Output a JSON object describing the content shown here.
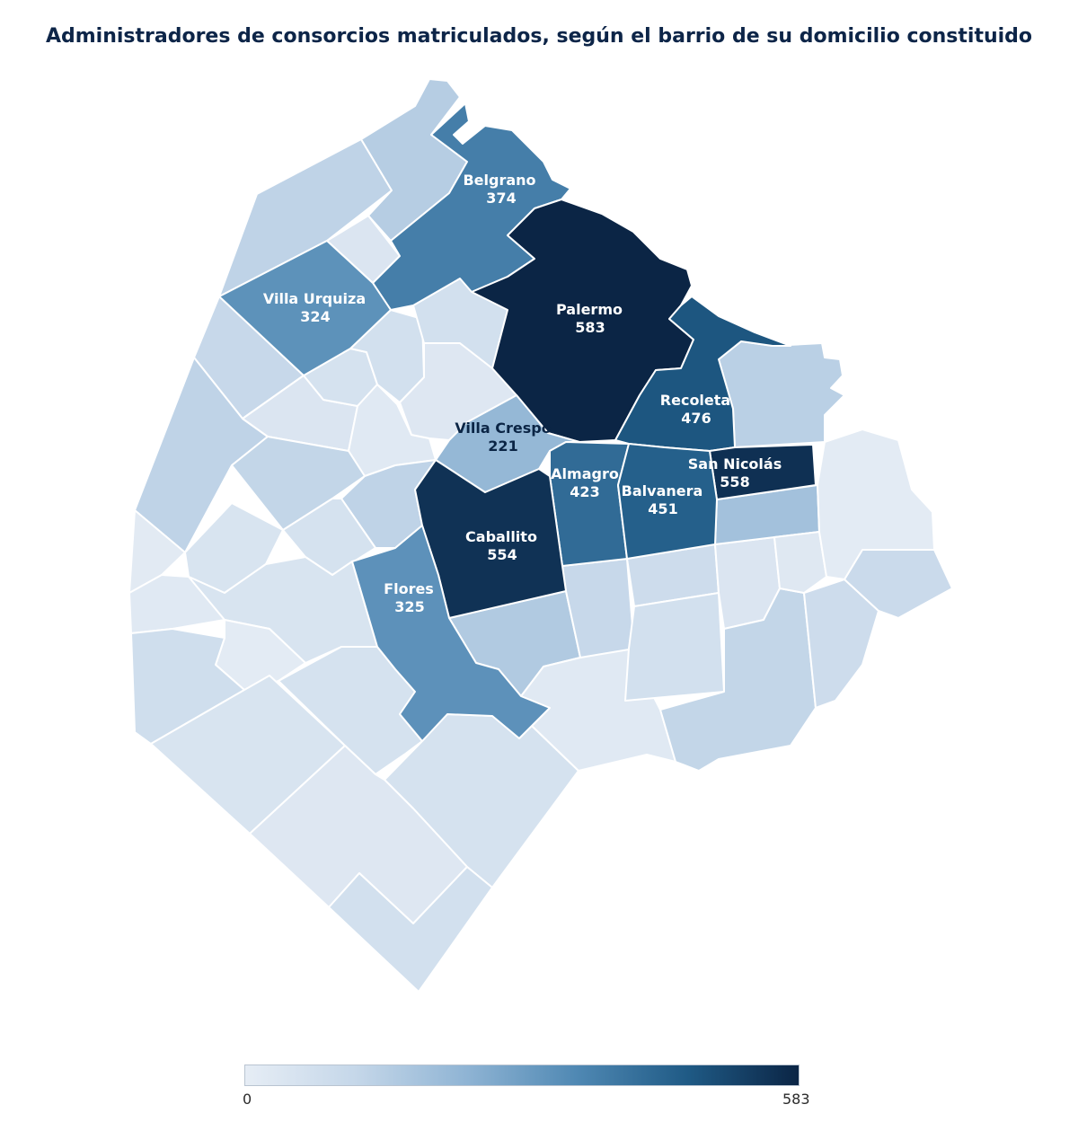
{
  "title": "Administradores de consorcios matriculados, según el barrio de su domicilio constituido",
  "colorscale": {
    "min_label": "0",
    "max_label": "583",
    "min": 0,
    "max": 583,
    "stops": [
      "#e6edf5",
      "#c5d7e9",
      "#8fb4d4",
      "#4f88b3",
      "#1f5a85",
      "#0b2545"
    ]
  },
  "neighborhoods": [
    {
      "name": "Belgrano",
      "value": "374",
      "value_num": 374,
      "labeled": true
    },
    {
      "name": "Villa Urquiza",
      "value": "324",
      "value_num": 324,
      "labeled": true
    },
    {
      "name": "Palermo",
      "value": "583",
      "value_num": 583,
      "labeled": true
    },
    {
      "name": "Recoleta",
      "value": "476",
      "value_num": 476,
      "labeled": true
    },
    {
      "name": "Villa Crespo",
      "value": "221",
      "value_num": 221,
      "labeled": true
    },
    {
      "name": "Almagro",
      "value": "423",
      "value_num": 423,
      "labeled": true
    },
    {
      "name": "San Nicolás",
      "value": "558",
      "value_num": 558,
      "labeled": true
    },
    {
      "name": "Balvanera",
      "value": "451",
      "value_num": 451,
      "labeled": true
    },
    {
      "name": "Caballito",
      "value": "554",
      "value_num": 554,
      "labeled": true
    },
    {
      "name": "Flores",
      "value": "325",
      "value_num": 325,
      "labeled": true
    }
  ],
  "unlabeled_shading": [
    {
      "id": "n01",
      "value_num": 130
    },
    {
      "id": "n02",
      "value_num": 150
    },
    {
      "id": "n03",
      "value_num": 40
    },
    {
      "id": "n04",
      "value_num": 110
    },
    {
      "id": "n05",
      "value_num": 130
    },
    {
      "id": "n06",
      "value_num": 40
    },
    {
      "id": "n07",
      "value_num": 60
    },
    {
      "id": "n08",
      "value_num": 20
    },
    {
      "id": "n09",
      "value_num": 70
    },
    {
      "id": "n10",
      "value_num": 30
    },
    {
      "id": "n11",
      "value_num": 15
    },
    {
      "id": "n12",
      "value_num": 120
    },
    {
      "id": "n13",
      "value_num": 50
    },
    {
      "id": "n14",
      "value_num": 130
    },
    {
      "id": "n15",
      "value_num": 60
    },
    {
      "id": "n16",
      "value_num": 20
    },
    {
      "id": "n17",
      "value_num": 50
    },
    {
      "id": "n18",
      "value_num": 10
    },
    {
      "id": "n19",
      "value_num": 80
    },
    {
      "id": "n20",
      "value_num": 50
    },
    {
      "id": "n21",
      "value_num": 60
    },
    {
      "id": "n22",
      "value_num": 60
    },
    {
      "id": "n23",
      "value_num": 30
    },
    {
      "id": "n24",
      "value_num": 70
    },
    {
      "id": "n25",
      "value_num": 160
    },
    {
      "id": "n26",
      "value_num": 20
    },
    {
      "id": "n27",
      "value_num": 110
    },
    {
      "id": "n28",
      "value_num": 90
    },
    {
      "id": "n29",
      "value_num": 70
    },
    {
      "id": "n30",
      "value_num": 40
    },
    {
      "id": "n31",
      "value_num": 120
    },
    {
      "id": "n32",
      "value_num": 90
    },
    {
      "id": "n33",
      "value_num": 190
    },
    {
      "id": "n34",
      "value_num": 25
    },
    {
      "id": "n35",
      "value_num": 140
    },
    {
      "id": "n36",
      "value_num": 100
    },
    {
      "id": "n37",
      "value_num": 70
    },
    {
      "id": "n38",
      "value_num": 10
    }
  ]
}
